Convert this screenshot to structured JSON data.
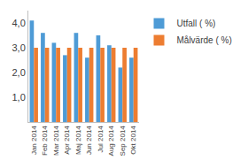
{
  "chart_data": {
    "type": "bar",
    "categories": [
      "Jan 2014",
      "Feb 2014",
      "Mar 2014",
      "Apr 2014",
      "Maj 2014",
      "Jun 2014",
      "Jul 2014",
      "Aug 2014",
      "Sep 2014",
      "Okt 2014"
    ],
    "series": [
      {
        "name": "Utfall ( %)",
        "color": "#4e9bd6",
        "values": [
          4.1,
          3.6,
          3.2,
          2.7,
          3.6,
          2.6,
          3.5,
          3.1,
          2.2,
          2.6
        ]
      },
      {
        "name": "Målvärde ( %)",
        "color": "#ed7d31",
        "values": [
          3.0,
          3.0,
          3.0,
          3.0,
          3.0,
          3.0,
          3.0,
          3.0,
          3.0,
          3.0
        ]
      }
    ],
    "ylim": [
      0,
      4.5
    ],
    "yticks": [
      {
        "value": 1,
        "label": "1,0"
      },
      {
        "value": 2,
        "label": "2,0"
      },
      {
        "value": 3,
        "label": "3,0"
      },
      {
        "value": 4,
        "label": "4,0"
      }
    ],
    "grid": false,
    "legend": "right"
  }
}
